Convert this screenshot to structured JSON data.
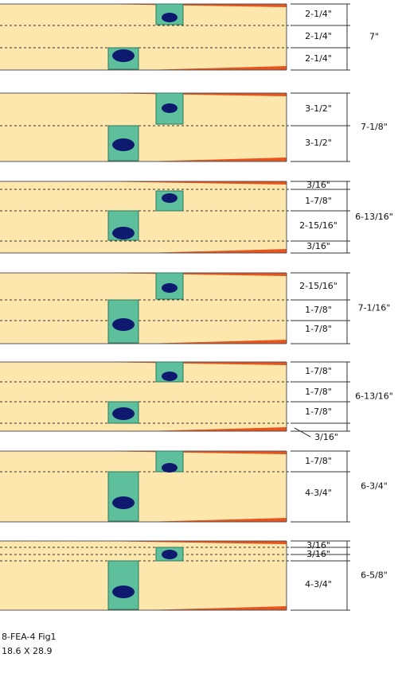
{
  "panels": [
    {
      "dimensions": [
        "2-1/4\"",
        "2-1/4\"",
        "2-1/4\""
      ],
      "total": "7\""
    },
    {
      "dimensions": [
        "3-1/2\"",
        "3-1/2\""
      ],
      "total": "7-1/8\""
    },
    {
      "dimensions": [
        "3/16\"",
        "1-7/8\"",
        "2-15/16\"",
        "3/16\""
      ],
      "total": "6-13/16\""
    },
    {
      "dimensions": [
        "2-15/16\"",
        "1-7/8\"",
        "1-7/8\""
      ],
      "total": "7-1/16\""
    },
    {
      "dimensions": [
        "1-7/8\"",
        "1-7/8\"",
        "1-7/8\""
      ],
      "total": "6-13/16\"",
      "callout": "3/16\""
    },
    {
      "dimensions": [
        "1-7/8\"",
        "4-3/4\""
      ],
      "total": "6-3/4\""
    },
    {
      "dimensions": [
        "3/16\"",
        "3/16\"",
        "4-3/4\""
      ],
      "total": "6-5/8\""
    }
  ],
  "footer": {
    "figure_id": "8-FEA-4 Fig1",
    "size": "18.6 X 28.9"
  }
}
